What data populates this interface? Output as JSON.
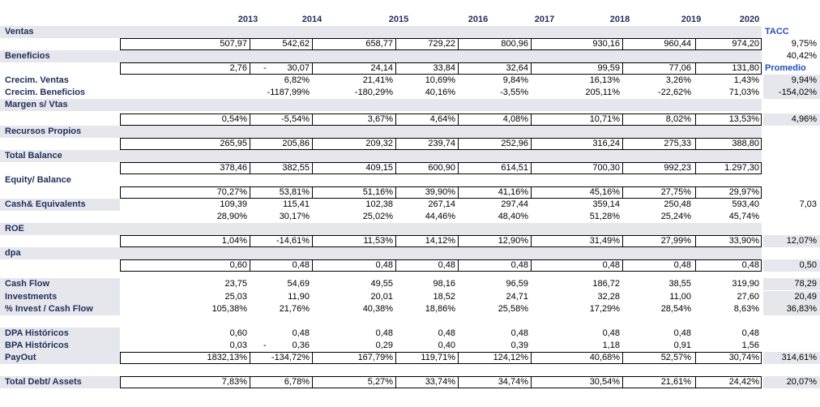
{
  "years": [
    "2013",
    "2014",
    "2015",
    "2016",
    "2017",
    "2018",
    "2019",
    "2020"
  ],
  "rows": [
    {
      "label": "Ventas",
      "side": "TACC"
    },
    {
      "values": [
        "507,97",
        "542,62",
        "658,77",
        "729,22",
        "800,96",
        "930,16",
        "960,44",
        "974,20"
      ],
      "side": "9,75%"
    },
    {
      "label": "Beneficios",
      "side": "40,42%"
    },
    {
      "values": [
        "2,76",
        "30,07",
        "24,14",
        "33,84",
        "32,64",
        "99,59",
        "77,06",
        "131,80"
      ],
      "dash": "-",
      "side": "Promedio"
    },
    {
      "label": "Crecim. Ventas",
      "values": [
        null,
        "6,82%",
        "21,41%",
        "10,69%",
        "9,84%",
        "16,13%",
        "3,26%",
        "1,43%"
      ],
      "side": "9,94%"
    },
    {
      "label": "Crecim. Beneficios",
      "values": [
        null,
        "-1187,99%",
        "-180,29%",
        "40,16%",
        "-3,55%",
        "205,11%",
        "-22,62%",
        "71,03%"
      ],
      "side": "-154,02%"
    },
    {
      "label": "Margen s/ Vtas"
    },
    {
      "values": [
        "0,54%",
        "-5,54%",
        "3,67%",
        "4,64%",
        "4,08%",
        "10,71%",
        "8,02%",
        "13,53%"
      ],
      "side": "4,96%"
    },
    {
      "label": "Recursos Propios"
    },
    {
      "values": [
        "265,95",
        "205,86",
        "209,32",
        "239,74",
        "252,96",
        "316,24",
        "275,33",
        "388,80"
      ]
    },
    {
      "label": "Total Balance"
    },
    {
      "values": [
        "378,46",
        "382,55",
        "409,15",
        "600,90",
        "614,51",
        "700,30",
        "992,23",
        "1.297,30"
      ]
    },
    {
      "label": "Equity/ Balance"
    },
    {
      "values": [
        "70,27%",
        "53,81%",
        "51,16%",
        "39,90%",
        "41,16%",
        "45,16%",
        "27,75%",
        "29,97%"
      ]
    },
    {
      "label": "Cash& Equivalents",
      "values": [
        "109,39",
        "115,41",
        "102,38",
        "267,14",
        "297,44",
        "359,14",
        "250,48",
        "593,40"
      ],
      "side": "7,03"
    },
    {
      "values": [
        "28,90%",
        "30,17%",
        "25,02%",
        "44,46%",
        "48,40%",
        "51,28%",
        "25,24%",
        "45,74%"
      ]
    },
    {
      "label": "ROE"
    },
    {
      "values": [
        "1,04%",
        "-14,61%",
        "11,53%",
        "14,12%",
        "12,90%",
        "31,49%",
        "27,99%",
        "33,90%"
      ],
      "side": "12,07%"
    },
    {
      "label": "dpa"
    },
    {
      "values": [
        "0,60",
        "0,48",
        "0,48",
        "0,48",
        "0,48",
        "0,48",
        "0,48",
        "0,48"
      ],
      "side": "0,50"
    },
    {
      "label": "Cash  Flow",
      "values": [
        "23,75",
        "54,69",
        "49,55",
        "98,16",
        "96,59",
        "186,72",
        "38,55",
        "319,90"
      ],
      "side": "78,29"
    },
    {
      "label": "Investments",
      "values": [
        "25,03",
        "11,90",
        "20,01",
        "18,52",
        "24,71",
        "32,28",
        "11,00",
        "27,60"
      ],
      "side": "20,49"
    },
    {
      "label": "% Invest / Cash Flow",
      "values": [
        "105,38%",
        "21,76%",
        "40,38%",
        "18,86%",
        "25,58%",
        "17,29%",
        "28,54%",
        "8,63%"
      ],
      "side": "36,83%"
    },
    {
      "label": "DPA Históricos",
      "values": [
        "0,60",
        "0,48",
        "0,48",
        "0,48",
        "0,48",
        "0,48",
        "0,48",
        "0,48"
      ]
    },
    {
      "label": "BPA Históricos",
      "values": [
        "0,03",
        "0,36",
        "0,29",
        "0,40",
        "0,39",
        "1,18",
        "0,91",
        "1,56"
      ],
      "dash": "-"
    },
    {
      "label": "PayOut",
      "values": [
        "1832,13%",
        "-134,72%",
        "167,79%",
        "119,71%",
        "124,12%",
        "40,68%",
        "52,57%",
        "30,74%"
      ],
      "side": "314,61%"
    },
    {
      "label": "Total Debt/ Assets",
      "values": [
        "7,83%",
        "6,78%",
        "5,27%",
        "33,74%",
        "34,74%",
        "30,54%",
        "21,61%",
        "24,42%"
      ],
      "side": "20,07%"
    }
  ]
}
